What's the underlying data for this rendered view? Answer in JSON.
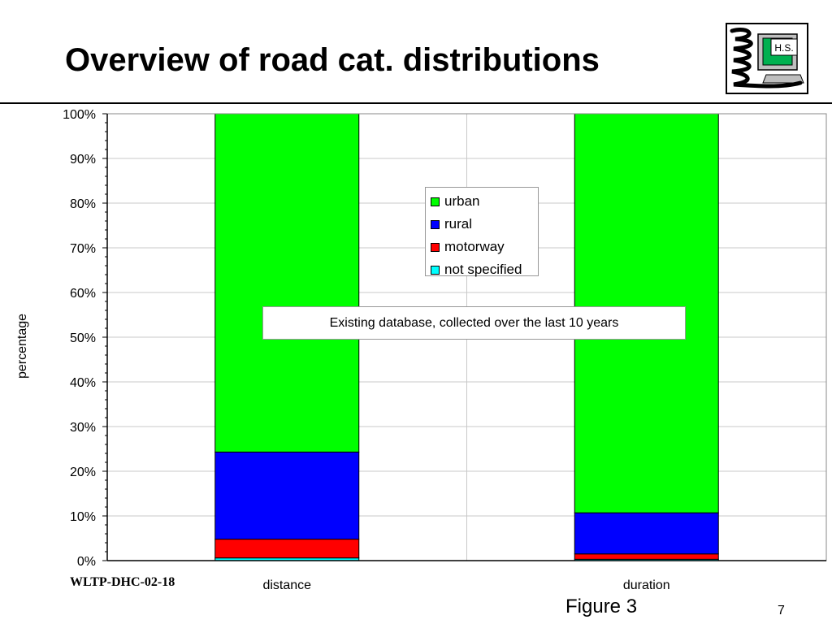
{
  "slide": {
    "title": "Overview of road cat. distributions",
    "footer_left": "WLTP-DHC-02-18",
    "figure_label": "Figure 3",
    "page_number": "7",
    "logo_text": "H.S."
  },
  "annotation": "Existing database, collected over the last 10 years",
  "colors": {
    "urban": "#00FF00",
    "rural": "#0000FF",
    "motorway": "#FF0000",
    "not_specified": "#00FFFF"
  },
  "chart_data": {
    "type": "bar",
    "stacked": true,
    "categories": [
      "distance",
      "duration"
    ],
    "series": [
      {
        "name": "not specified",
        "color": "#00FFFF",
        "values": [
          0.6,
          0.3
        ]
      },
      {
        "name": "motorway",
        "color": "#FF0000",
        "values": [
          4.2,
          1.2
        ]
      },
      {
        "name": "rural",
        "color": "#0000FF",
        "values": [
          19.5,
          9.2
        ]
      },
      {
        "name": "urban",
        "color": "#00FF00",
        "values": [
          75.7,
          89.3
        ]
      }
    ],
    "legend": [
      "urban",
      "rural",
      "motorway",
      "not specified"
    ],
    "legend_position": "top-center",
    "ylabel": "percentage",
    "xlabel": "",
    "ylim": [
      0,
      100
    ],
    "yticks": [
      "0%",
      "10%",
      "20%",
      "30%",
      "40%",
      "50%",
      "60%",
      "70%",
      "80%",
      "90%",
      "100%"
    ],
    "grid": true
  }
}
